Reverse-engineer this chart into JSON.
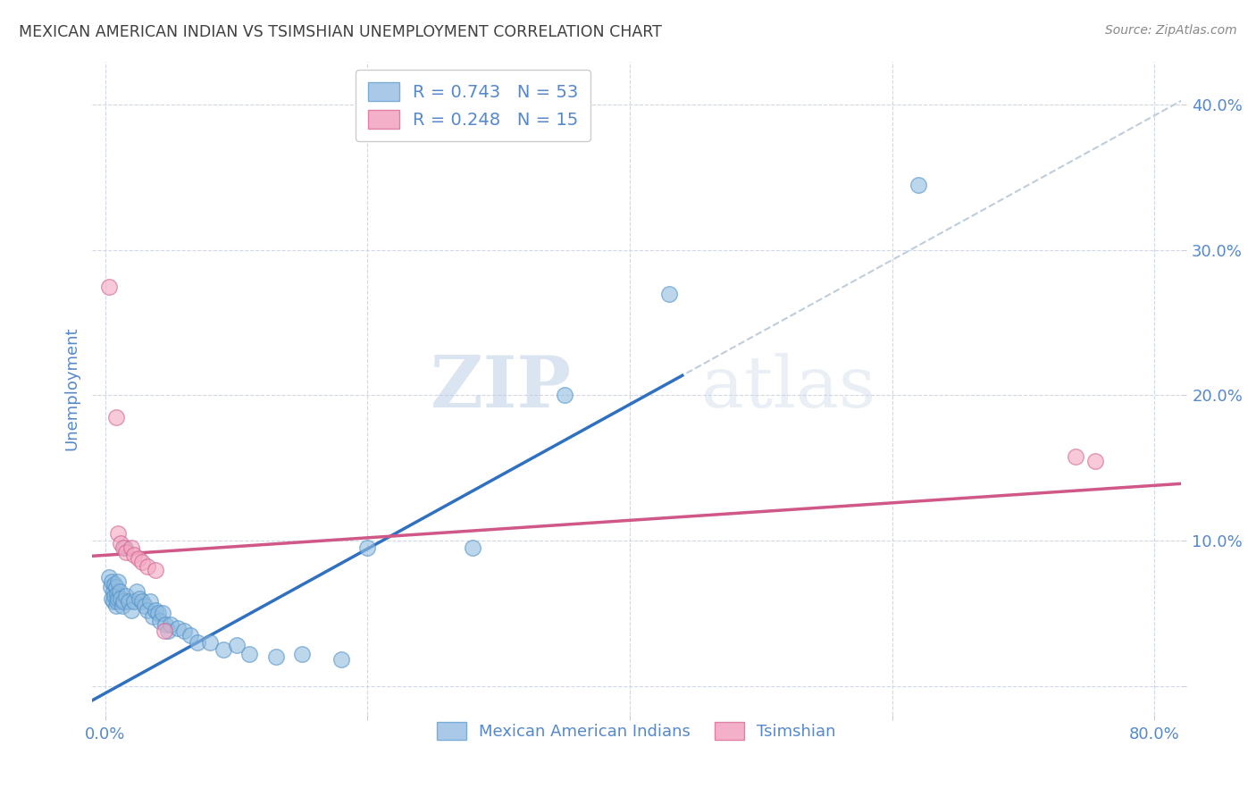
{
  "title": "MEXICAN AMERICAN INDIAN VS TSIMSHIAN UNEMPLOYMENT CORRELATION CHART",
  "source": "Source: ZipAtlas.com",
  "ylabel": "Unemployment",
  "ytick_positions": [
    0.0,
    0.1,
    0.2,
    0.3,
    0.4
  ],
  "xtick_positions": [
    0.0,
    0.2,
    0.4,
    0.6,
    0.8
  ],
  "xlim": [
    -0.01,
    0.82
  ],
  "ylim": [
    -0.02,
    0.43
  ],
  "watermark_zip": "ZIP",
  "watermark_atlas": "atlas",
  "legend_entries": [
    {
      "label": "R = 0.743   N = 53",
      "facecolor": "#aac8e8",
      "edgecolor": "#7aaed6"
    },
    {
      "label": "R = 0.248   N = 15",
      "facecolor": "#f4b0c8",
      "edgecolor": "#e080a8"
    }
  ],
  "legend_labels_bottom": [
    "Mexican American Indians",
    "Tsimshian"
  ],
  "blue_scatter": [
    [
      0.003,
      0.075
    ],
    [
      0.004,
      0.068
    ],
    [
      0.005,
      0.072
    ],
    [
      0.005,
      0.06
    ],
    [
      0.006,
      0.065
    ],
    [
      0.006,
      0.058
    ],
    [
      0.007,
      0.07
    ],
    [
      0.007,
      0.062
    ],
    [
      0.008,
      0.068
    ],
    [
      0.008,
      0.055
    ],
    [
      0.009,
      0.063
    ],
    [
      0.009,
      0.058
    ],
    [
      0.01,
      0.072
    ],
    [
      0.01,
      0.06
    ],
    [
      0.011,
      0.065
    ],
    [
      0.012,
      0.06
    ],
    [
      0.013,
      0.055
    ],
    [
      0.014,
      0.058
    ],
    [
      0.015,
      0.095
    ],
    [
      0.016,
      0.062
    ],
    [
      0.018,
      0.058
    ],
    [
      0.02,
      0.052
    ],
    [
      0.022,
      0.058
    ],
    [
      0.024,
      0.065
    ],
    [
      0.026,
      0.06
    ],
    [
      0.028,
      0.058
    ],
    [
      0.03,
      0.055
    ],
    [
      0.032,
      0.052
    ],
    [
      0.034,
      0.058
    ],
    [
      0.036,
      0.048
    ],
    [
      0.038,
      0.052
    ],
    [
      0.04,
      0.05
    ],
    [
      0.042,
      0.045
    ],
    [
      0.044,
      0.05
    ],
    [
      0.046,
      0.042
    ],
    [
      0.048,
      0.038
    ],
    [
      0.05,
      0.042
    ],
    [
      0.055,
      0.04
    ],
    [
      0.06,
      0.038
    ],
    [
      0.065,
      0.035
    ],
    [
      0.07,
      0.03
    ],
    [
      0.08,
      0.03
    ],
    [
      0.09,
      0.025
    ],
    [
      0.1,
      0.028
    ],
    [
      0.11,
      0.022
    ],
    [
      0.13,
      0.02
    ],
    [
      0.15,
      0.022
    ],
    [
      0.18,
      0.018
    ],
    [
      0.2,
      0.095
    ],
    [
      0.28,
      0.095
    ],
    [
      0.35,
      0.2
    ],
    [
      0.43,
      0.27
    ],
    [
      0.62,
      0.345
    ]
  ],
  "pink_scatter": [
    [
      0.003,
      0.275
    ],
    [
      0.008,
      0.185
    ],
    [
      0.01,
      0.105
    ],
    [
      0.012,
      0.098
    ],
    [
      0.014,
      0.095
    ],
    [
      0.016,
      0.092
    ],
    [
      0.02,
      0.095
    ],
    [
      0.022,
      0.09
    ],
    [
      0.025,
      0.088
    ],
    [
      0.028,
      0.085
    ],
    [
      0.032,
      0.082
    ],
    [
      0.038,
      0.08
    ],
    [
      0.045,
      0.038
    ],
    [
      0.74,
      0.158
    ],
    [
      0.755,
      0.155
    ]
  ],
  "blue_line_slope": 0.497,
  "blue_line_intercept": -0.005,
  "blue_line_xstart": -0.01,
  "blue_line_xend": 0.44,
  "pink_line_slope": 0.06,
  "pink_line_intercept": 0.09,
  "pink_line_xstart": -0.01,
  "pink_line_xend": 0.82,
  "dashed_line_slope": 0.497,
  "dashed_line_intercept": -0.005,
  "dashed_line_xstart": 0.43,
  "dashed_line_xend": 0.88,
  "dot_color_blue": "#90bce0",
  "dot_edgecolor_blue": "#5090c8",
  "dot_color_pink": "#f4a8c0",
  "dot_edgecolor_pink": "#d06090",
  "line_color_blue": "#3070c0",
  "line_color_pink": "#d05888",
  "line_color_dashed": "#b8c8d8",
  "background_color": "#ffffff",
  "grid_color": "#d0d8e8",
  "title_color": "#404040",
  "source_color": "#888888",
  "axis_label_color": "#5588cc",
  "tick_label_color": "#5588cc"
}
